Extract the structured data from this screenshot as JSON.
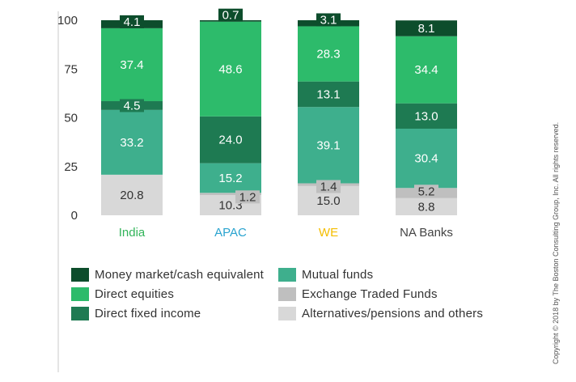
{
  "chart_data": {
    "type": "bar",
    "stacked": true,
    "categories": [
      "India",
      "APAC",
      "WE",
      "NA Banks"
    ],
    "category_colors": [
      "#32b45a",
      "#29a3cf",
      "#f5be00",
      "#444444"
    ],
    "ylim": [
      0,
      100
    ],
    "yticks": [
      0,
      25,
      50,
      75,
      100
    ],
    "grid": false,
    "legend_position": "bottom",
    "series": [
      {
        "name": "Alternatives/pensions and others",
        "color": "#d8d8d8",
        "values": [
          20.8,
          10.3,
          15.0,
          8.8
        ],
        "labels": [
          "20.8",
          "10.3",
          "15.0",
          "8.8"
        ]
      },
      {
        "name": "Exchange Traded Funds",
        "color": "#bfbfbf",
        "values": [
          0,
          1.2,
          1.4,
          5.2
        ],
        "labels": [
          "",
          "1.2",
          "1.4",
          "5.2"
        ]
      },
      {
        "name": "Mutual funds",
        "color": "#3eaf8d",
        "values": [
          33.2,
          15.2,
          39.1,
          30.4
        ],
        "labels": [
          "33.2",
          "15.2",
          "39.1",
          "30.4"
        ]
      },
      {
        "name": "Direct fixed income",
        "color": "#1e7a52",
        "values": [
          4.5,
          24.0,
          13.1,
          13.0
        ],
        "labels": [
          "4.5",
          "24.0",
          "13.1",
          "13.0"
        ]
      },
      {
        "name": "Direct equities",
        "color": "#2dbb6b",
        "values": [
          37.4,
          48.6,
          28.3,
          34.4
        ],
        "labels": [
          "37.4",
          "48.6",
          "28.3",
          "34.4"
        ]
      },
      {
        "name": "Money market/cash equivalent",
        "color": "#0d4d2c",
        "values": [
          4.1,
          0.7,
          3.1,
          8.1
        ],
        "labels": [
          "4.1",
          "0.7",
          "3.1",
          "8.1"
        ]
      }
    ]
  },
  "legend": {
    "items": [
      {
        "label": "Money market/cash equivalent",
        "color": "#0d4d2c"
      },
      {
        "label": "Direct equities",
        "color": "#2dbb6b"
      },
      {
        "label": "Direct fixed income",
        "color": "#1e7a52"
      },
      {
        "label": "Mutual funds",
        "color": "#3eaf8d"
      },
      {
        "label": "Exchange Traded Funds",
        "color": "#bfbfbf"
      },
      {
        "label": "Alternatives/pensions and others",
        "color": "#d8d8d8"
      }
    ]
  },
  "copyright": "Copyright © 2018 by The Boston Consulting Group, Inc. All rights reserved."
}
